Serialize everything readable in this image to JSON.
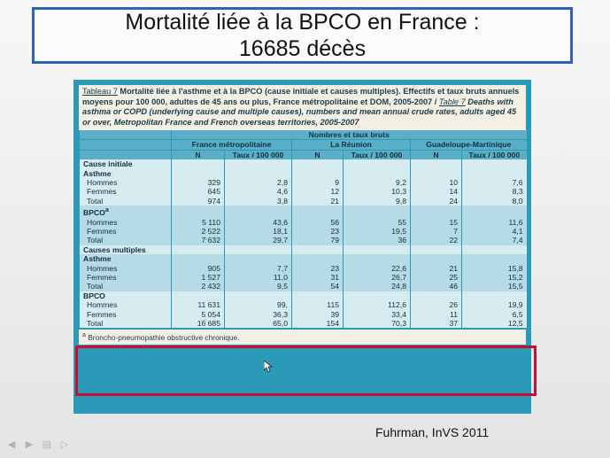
{
  "slide": {
    "title_line1": "Mortalité liée à la BPCO en France :",
    "title_line2": "16685 décès",
    "attribution": "Fuhrman, InVS 2011"
  },
  "table": {
    "caption_tag_fr": "Tableau 7",
    "caption_fr": "Mortalité liée à l'asthme et à la BPCO (cause initiale et causes multiples). Effectifs et taux bruts annuels moyens pour 100 000, adultes de 45 ans ou plus, France métropolitaine et DOM, 2005-2007 /",
    "caption_tag_en": "Table 7",
    "caption_en": "Deaths with asthma or COPD (underlying cause and multiple causes), numbers and mean annual crude rates, adults aged 45 or over, Metropolitan France and French overseas territories, 2005-2007",
    "group_header": "Nombres et taux bruts",
    "regions": [
      "France métropolitaine",
      "La Réunion",
      "Guadeloupe-Martinique"
    ],
    "subheaders": [
      "N",
      "Taux / 100 000",
      "N",
      "Taux / 100 000",
      "N",
      "Taux / 100 000"
    ],
    "section_initial": "Cause initiale",
    "section_multiple": "Causes multiples",
    "initial": {
      "asthme": {
        "label": "Asthme",
        "rows": [
          {
            "label": "Hommes",
            "v": [
              "329",
              "2,8",
              "9",
              "9,2",
              "10",
              "7,6"
            ]
          },
          {
            "label": "Femmes",
            "v": [
              "645",
              "4,6",
              "12",
              "10,3",
              "14",
              "8,3"
            ]
          },
          {
            "label": "Total",
            "v": [
              "974",
              "3,8",
              "21",
              "9,8",
              "24",
              "8,0"
            ]
          }
        ]
      },
      "bpco": {
        "label": "BPCO",
        "sup": "a",
        "rows": [
          {
            "label": "Hommes",
            "v": [
              "5 110",
              "43,6",
              "56",
              "55",
              "15",
              "11,6"
            ]
          },
          {
            "label": "Femmes",
            "v": [
              "2 522",
              "18,1",
              "23",
              "19,5",
              "7",
              "4,1"
            ]
          },
          {
            "label": "Total",
            "v": [
              "7 632",
              "29,7",
              "79",
              "36",
              "22",
              "7,4"
            ]
          }
        ]
      }
    },
    "multiple": {
      "asthme": {
        "label": "Asthme",
        "rows": [
          {
            "label": "Hommes",
            "v": [
              "905",
              "7,7",
              "23",
              "22,6",
              "21",
              "15,8"
            ]
          },
          {
            "label": "Femmes",
            "v": [
              "1 527",
              "11,0",
              "31",
              "26,7",
              "25",
              "15,2"
            ]
          },
          {
            "label": "Total",
            "v": [
              "2 432",
              "9,5",
              "54",
              "24,8",
              "46",
              "15,5"
            ]
          }
        ]
      },
      "bpco": {
        "label": "BPCO",
        "rows": [
          {
            "label": "Hommes",
            "v": [
              "11 631",
              "99,",
              "115",
              "112,6",
              "26",
              "19,9"
            ]
          },
          {
            "label": "Femmes",
            "v": [
              "5 054",
              "36,3",
              "39",
              "33,4",
              "11",
              "6,5"
            ]
          },
          {
            "label": "Total",
            "v": [
              "16 685",
              "65,0",
              "154",
              "70,3",
              "37",
              "12,5"
            ]
          }
        ]
      }
    },
    "footnote_sup": "a",
    "footnote": "Broncho-pneumopathie obstructive chronique."
  },
  "colors": {
    "title_border": "#2f64b4",
    "table_frame": "#2a9ab8",
    "highlight": "#c8102e"
  }
}
